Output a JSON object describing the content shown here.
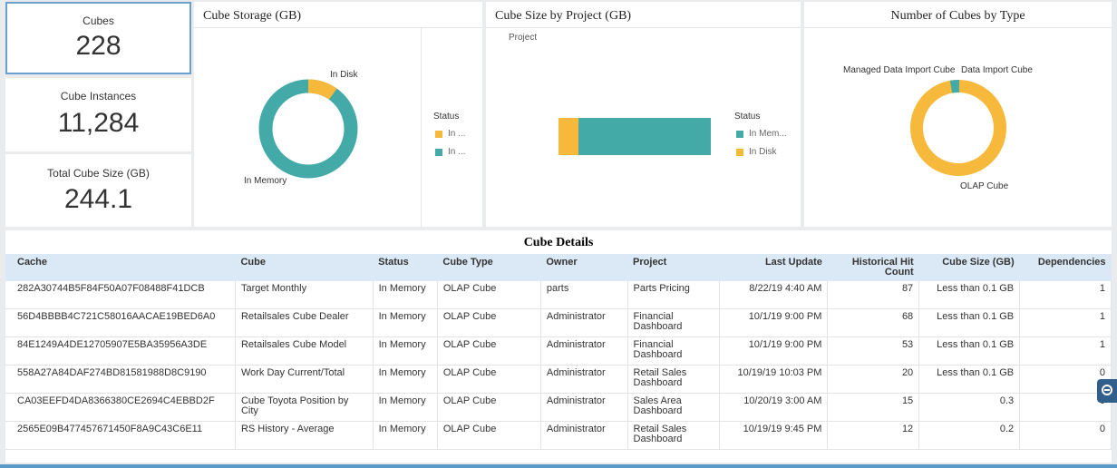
{
  "kpis": {
    "cubes": {
      "label": "Cubes",
      "value": "228"
    },
    "instances": {
      "label": "Cube Instances",
      "value": "11,284"
    },
    "size": {
      "label": "Total Cube Size (GB)",
      "value": "244.1"
    }
  },
  "storage": {
    "title": "Cube Storage (GB)",
    "label_disk": "In Disk",
    "label_memory": "In Memory",
    "legend_title": "Status",
    "legend": [
      "In ...",
      "In ..."
    ]
  },
  "project": {
    "title": "Cube Size by Project (GB)",
    "axis_label": "Project",
    "legend_title": "Status",
    "legend": [
      "In Mem...",
      "In Disk"
    ]
  },
  "type": {
    "title": "Number of Cubes by Type",
    "label_managed": "Managed Data Import Cube",
    "label_import": "Data Import Cube",
    "label_olap": "OLAP Cube"
  },
  "details": {
    "title": "Cube Details",
    "columns": [
      "Cache",
      "Cube",
      "Status",
      "Cube Type",
      "Owner",
      "Project",
      "Last Update",
      "Historical Hit Count",
      "Cube Size (GB)",
      "Dependencies"
    ],
    "rows": [
      [
        "282A30744B5F84F50A07F08488F41DCB",
        "Target Monthly",
        "In Memory",
        "OLAP Cube",
        "parts",
        "Parts Pricing",
        "8/22/19 4:40 AM",
        "87",
        "Less than 0.1 GB",
        "1"
      ],
      [
        "56D4BBBB4C721C58016AACAE19BED6A0",
        "Retailsales Cube Dealer",
        "In Memory",
        "OLAP Cube",
        "Administrator",
        "Financial Dashboard",
        "10/1/19 9:00 PM",
        "68",
        "Less than 0.1 GB",
        "1"
      ],
      [
        "84E1249A4DE12705907E5BA35956A3DE",
        "Retailsales Cube Model",
        "In Memory",
        "OLAP Cube",
        "Administrator",
        "Financial Dashboard",
        "10/1/19 9:00 PM",
        "53",
        "Less than 0.1 GB",
        "1"
      ],
      [
        "558A27A84DAF274BD81581988D8C9190",
        "Work Day Current/Total",
        "In Memory",
        "OLAP Cube",
        "Administrator",
        "Retail Sales Dashboard",
        "10/19/19 10:03 PM",
        "20",
        "Less than 0.1 GB",
        "0"
      ],
      [
        "CA03EEFD4DA8366380CE2694C4EBBD2F",
        "Cube Toyota Position by City",
        "In Memory",
        "OLAP Cube",
        "Administrator",
        "Sales Area Dashboard",
        "10/20/19 3:00 AM",
        "15",
        "0.3",
        "0"
      ],
      [
        "2565E09B477457671450F8A9C43C6E11",
        "RS History - Average",
        "In Memory",
        "OLAP Cube",
        "Administrator",
        "Retail Sales Dashboard",
        "10/19/19 9:45 PM",
        "12",
        "0.2",
        "0"
      ]
    ]
  },
  "colors": {
    "teal": "#44aaa8",
    "yellow": "#f6b93b",
    "header": "#dbe9f7"
  },
  "chart_data": [
    {
      "type": "pie",
      "title": "Cube Storage (GB)",
      "categories": [
        "In Memory",
        "In Disk"
      ],
      "values": [
        220,
        24
      ]
    },
    {
      "type": "bar",
      "title": "Cube Size by Project (GB)",
      "categories": [
        "Project"
      ],
      "series": [
        {
          "name": "In Disk",
          "values": [
            24
          ]
        },
        {
          "name": "In Memory",
          "values": [
            220
          ]
        }
      ]
    },
    {
      "type": "pie",
      "title": "Number of Cubes by Type",
      "categories": [
        "OLAP Cube",
        "Managed Data Import Cube",
        "Data Import Cube"
      ],
      "values": [
        219,
        8,
        1
      ]
    }
  ]
}
